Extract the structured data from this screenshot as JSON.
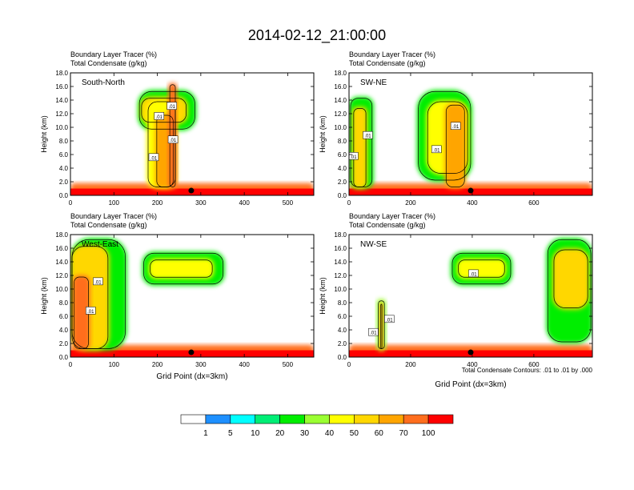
{
  "figure": {
    "title": "2014-02-12_21:00:00",
    "contour_note": "Total Condensate Contours: .01 to .01 by .000"
  },
  "colorbar": {
    "levels": [
      "1",
      "5",
      "10",
      "20",
      "30",
      "40",
      "50",
      "60",
      "70",
      "100"
    ],
    "colors": [
      "#ffffff",
      "#1e90ff",
      "#00ffff",
      "#00ee76",
      "#00ee00",
      "#9aff32",
      "#ffff00",
      "#ffd700",
      "#ffa500",
      "#ff6e1e",
      "#ff0000"
    ]
  },
  "chart_data": [
    {
      "type": "heatmap",
      "panel": "South-North",
      "line1": "Boundary Layer Tracer   (%)",
      "line2": "Total Condensate   (g/kg)",
      "ylabel": "Height (km)",
      "xlabel": "",
      "xlim": [
        0,
        560
      ],
      "ylim": [
        0,
        18
      ],
      "xticks": [
        "0",
        "100",
        "200",
        "300",
        "400",
        "500"
      ],
      "yticks": [
        "0.0",
        "2.0",
        "4.0",
        "6.0",
        "8.0",
        "10.0",
        "12.0",
        "14.0",
        "16.0",
        "18.0"
      ],
      "contour_labels": [
        ".01",
        ".01",
        ".01",
        ".01"
      ],
      "marker_x": 278,
      "features": [
        {
          "x0": 0,
          "x1": 560,
          "y0": 0,
          "y1": 1.8,
          "value": 70
        },
        {
          "x0": 0,
          "x1": 560,
          "y0": 0,
          "y1": 1.0,
          "value": 100
        },
        {
          "x0": 155,
          "x1": 290,
          "y0": 9.5,
          "y1": 15.5,
          "value": 20
        },
        {
          "x0": 160,
          "x1": 270,
          "y0": 10.5,
          "y1": 14.5,
          "value": 50
        },
        {
          "x0": 175,
          "x1": 245,
          "y0": 1,
          "y1": 14,
          "value": 40
        },
        {
          "x0": 195,
          "x1": 240,
          "y0": 1,
          "y1": 12,
          "value": 60
        },
        {
          "x0": 225,
          "x1": 245,
          "y0": 1,
          "y1": 16.5,
          "value": 70
        }
      ]
    },
    {
      "type": "heatmap",
      "panel": "SW-NE",
      "line1": "Boundary Layer Tracer   (%)",
      "line2": "Total Condensate   (g/kg)",
      "ylabel": "Height (km)",
      "xlabel": "",
      "xlim": [
        0,
        790
      ],
      "ylim": [
        0,
        18
      ],
      "xticks": [
        "0",
        "200",
        "400",
        "600"
      ],
      "yticks": [
        "0.0",
        "2.0",
        "4.0",
        "6.0",
        "8.0",
        "10.0",
        "12.0",
        "14.0",
        "16.0",
        "18.0"
      ],
      "contour_labels": [
        ".01",
        ".01",
        ".01",
        ".01"
      ],
      "marker_x": 395,
      "features": [
        {
          "x0": 0,
          "x1": 790,
          "y0": 0,
          "y1": 1.8,
          "value": 70
        },
        {
          "x0": 0,
          "x1": 790,
          "y0": 0,
          "y1": 1.0,
          "value": 100
        },
        {
          "x0": 0,
          "x1": 80,
          "y0": 1,
          "y1": 14.5,
          "value": 20
        },
        {
          "x0": 10,
          "x1": 60,
          "y0": 1,
          "y1": 13,
          "value": 50
        },
        {
          "x0": 220,
          "x1": 400,
          "y0": 2,
          "y1": 15.5,
          "value": 20
        },
        {
          "x0": 250,
          "x1": 390,
          "y0": 3,
          "y1": 14,
          "value": 40
        },
        {
          "x0": 310,
          "x1": 380,
          "y0": 1,
          "y1": 13.5,
          "value": 60
        }
      ]
    },
    {
      "type": "heatmap",
      "panel": "West-East",
      "line1": "Boundary Layer Tracer   (%)",
      "line2": "Total Condensate   (g/kg)",
      "ylabel": "Height (km)",
      "xlabel": "Grid Point (dx=3km)",
      "xlim": [
        0,
        560
      ],
      "ylim": [
        0,
        18
      ],
      "xticks": [
        "0",
        "100",
        "200",
        "300",
        "400",
        "500"
      ],
      "yticks": [
        "0.0",
        "2.0",
        "4.0",
        "6.0",
        "8.0",
        "10.0",
        "12.0",
        "14.0",
        "16.0",
        "18.0"
      ],
      "contour_labels": [
        ".01",
        ".01"
      ],
      "marker_x": 278,
      "features": [
        {
          "x0": 0,
          "x1": 560,
          "y0": 0,
          "y1": 1.8,
          "value": 70
        },
        {
          "x0": 0,
          "x1": 560,
          "y0": 0,
          "y1": 1.0,
          "value": 100
        },
        {
          "x0": 0,
          "x1": 130,
          "y0": 1,
          "y1": 17.5,
          "value": 20
        },
        {
          "x0": 0,
          "x1": 90,
          "y0": 1,
          "y1": 16.5,
          "value": 50
        },
        {
          "x0": 5,
          "x1": 45,
          "y0": 1,
          "y1": 12,
          "value": 70
        },
        {
          "x0": 165,
          "x1": 355,
          "y0": 10.5,
          "y1": 15.5,
          "value": 20
        },
        {
          "x0": 180,
          "x1": 330,
          "y0": 11.5,
          "y1": 14.5,
          "value": 40
        }
      ]
    },
    {
      "type": "heatmap",
      "panel": "NW-SE",
      "line1": "Boundary Layer Tracer   (%)",
      "line2": "Total Condensate   (g/kg)",
      "ylabel": "Height (km)",
      "xlabel": "Grid Point (dx=3km)",
      "xlim": [
        0,
        790
      ],
      "ylim": [
        0,
        18
      ],
      "xticks": [
        "0",
        "200",
        "400",
        "600"
      ],
      "yticks": [
        "0.0",
        "2.0",
        "4.0",
        "6.0",
        "8.0",
        "10.0",
        "12.0",
        "14.0",
        "16.0",
        "18.0"
      ],
      "contour_labels": [
        ".01",
        ".01",
        ".01"
      ],
      "marker_x": 395,
      "features": [
        {
          "x0": 0,
          "x1": 790,
          "y0": 0,
          "y1": 1.8,
          "value": 70
        },
        {
          "x0": 0,
          "x1": 790,
          "y0": 0,
          "y1": 1.0,
          "value": 100
        },
        {
          "x0": 90,
          "x1": 120,
          "y0": 1,
          "y1": 8.5,
          "value": 30
        },
        {
          "x0": 98,
          "x1": 112,
          "y0": 1,
          "y1": 8,
          "value": 60
        },
        {
          "x0": 330,
          "x1": 530,
          "y0": 10.5,
          "y1": 15.5,
          "value": 20
        },
        {
          "x0": 350,
          "x1": 510,
          "y0": 11.5,
          "y1": 14.5,
          "value": 40
        },
        {
          "x0": 640,
          "x1": 790,
          "y0": 2,
          "y1": 17.5,
          "value": 20
        },
        {
          "x0": 660,
          "x1": 780,
          "y0": 7,
          "y1": 16,
          "value": 50
        }
      ]
    }
  ]
}
